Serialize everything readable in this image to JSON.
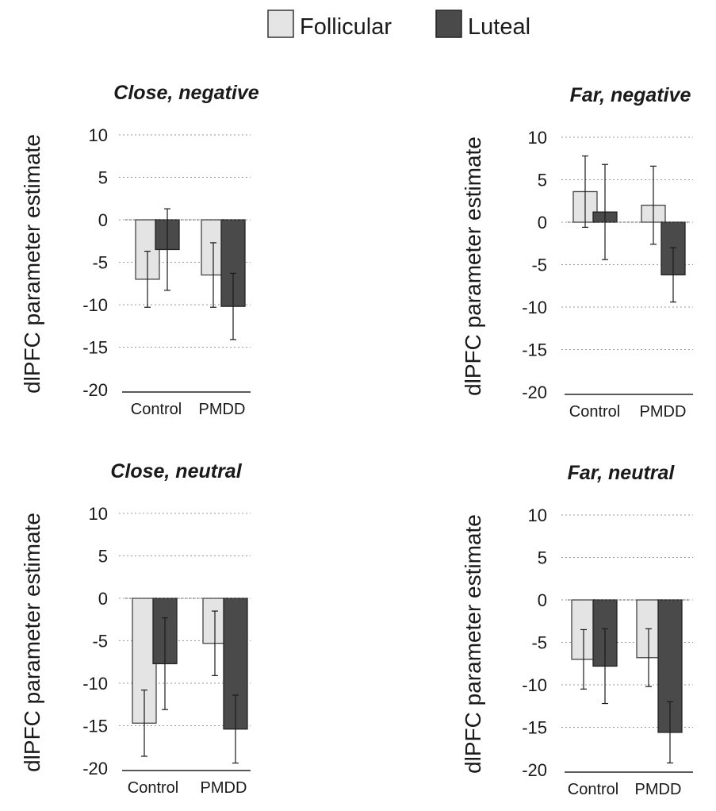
{
  "legend": {
    "items": [
      {
        "label": "Follicular",
        "color": "#e4e4e4"
      },
      {
        "label": "Luteal",
        "color": "#4a4a4a"
      }
    ]
  },
  "chart_data": [
    {
      "type": "bar",
      "title": "Close, negative",
      "ylabel": "dlPFC parameter estimate",
      "ylim": [
        -20,
        10
      ],
      "yticks": [
        10,
        5,
        0,
        -5,
        -10,
        -15,
        -20
      ],
      "categories": [
        "Control",
        "PMDD"
      ],
      "grid": true,
      "series": [
        {
          "name": "Follicular",
          "values": [
            -7.0,
            -6.5
          ],
          "error": [
            3.3,
            3.8
          ]
        },
        {
          "name": "Luteal",
          "values": [
            -3.5,
            -10.2
          ],
          "error": [
            4.8,
            3.9
          ]
        }
      ]
    },
    {
      "type": "bar",
      "title": "Far, negative",
      "ylabel": "dlPFC parameter estimate",
      "ylim": [
        -20,
        10
      ],
      "yticks": [
        10,
        5,
        0,
        -5,
        -10,
        -15,
        -20
      ],
      "categories": [
        "Control",
        "PMDD"
      ],
      "grid": true,
      "series": [
        {
          "name": "Follicular",
          "values": [
            3.6,
            2.0
          ],
          "error": [
            4.2,
            4.6
          ]
        },
        {
          "name": "Luteal",
          "values": [
            1.2,
            -6.2
          ],
          "error": [
            5.6,
            3.2
          ]
        }
      ]
    },
    {
      "type": "bar",
      "title": "Close, neutral",
      "ylabel": "dlPFC parameter estimate",
      "ylim": [
        -20,
        10
      ],
      "yticks": [
        10,
        5,
        0,
        -5,
        -10,
        -15,
        -20
      ],
      "categories": [
        "Control",
        "PMDD"
      ],
      "grid": true,
      "series": [
        {
          "name": "Follicular",
          "values": [
            -14.7,
            -5.3
          ],
          "error": [
            3.9,
            3.8
          ]
        },
        {
          "name": "Luteal",
          "values": [
            -7.7,
            -15.4
          ],
          "error": [
            5.4,
            4.0
          ]
        }
      ]
    },
    {
      "type": "bar",
      "title": "Far, neutral",
      "ylabel": "dlPFC parameter estimate",
      "ylim": [
        -20,
        10
      ],
      "yticks": [
        10,
        5,
        0,
        -5,
        -10,
        -15,
        -20
      ],
      "categories": [
        "Control",
        "PMDD"
      ],
      "grid": true,
      "series": [
        {
          "name": "Follicular",
          "values": [
            -7.0,
            -6.8
          ],
          "error": [
            3.5,
            3.4
          ]
        },
        {
          "name": "Luteal",
          "values": [
            -7.8,
            -15.6
          ],
          "error": [
            4.4,
            3.6
          ]
        }
      ]
    }
  ]
}
